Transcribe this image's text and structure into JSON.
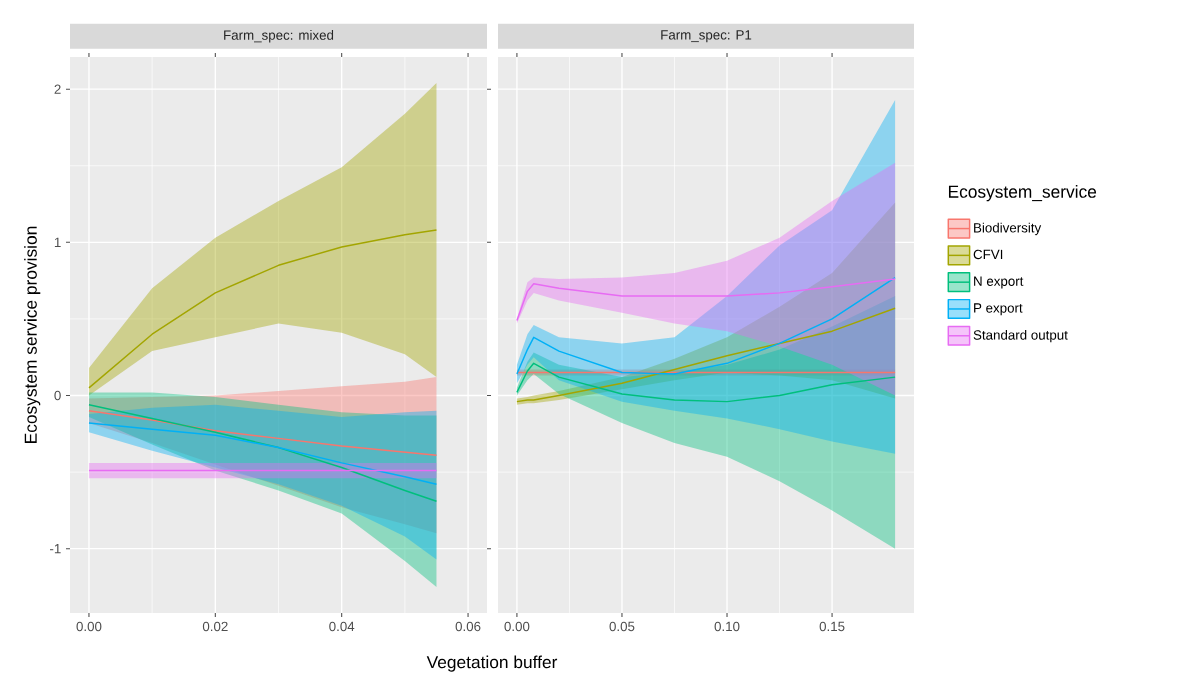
{
  "chart_data": [
    {
      "type": "line",
      "title": "Farm_spec: mixed",
      "xlabel": "Vegetation buffer",
      "ylabel": "Ecosystem service provision",
      "xlim": [
        -0.003,
        0.063
      ],
      "ylim": [
        -1.42,
        2.21
      ],
      "xticks": [
        {
          "value": 0,
          "label": "0.00"
        },
        {
          "value": 0.02,
          "label": "0.02"
        },
        {
          "value": 0.04,
          "label": "0.04"
        },
        {
          "value": 0.06,
          "label": "0.06"
        }
      ],
      "yticks": [
        -1,
        0,
        1,
        2
      ],
      "grid": true,
      "series": [
        {
          "color": "#F8766D",
          "x": [
            0,
            0.01,
            0.02,
            0.03,
            0.04,
            0.05,
            0.055
          ],
          "values": [
            -0.1,
            -0.16,
            -0.23,
            -0.28,
            -0.33,
            -0.37,
            -0.39
          ],
          "upper": [
            -0.02,
            -0.01,
            0.0,
            0.03,
            0.06,
            0.09,
            0.12
          ],
          "lower": [
            -0.18,
            -0.31,
            -0.45,
            -0.59,
            -0.73,
            -0.84,
            -0.9
          ]
        },
        {
          "color": "#A3A500",
          "x": [
            0,
            0.01,
            0.02,
            0.03,
            0.04,
            0.05,
            0.055
          ],
          "values": [
            0.05,
            0.4,
            0.67,
            0.85,
            0.97,
            1.05,
            1.08
          ],
          "upper": [
            0.18,
            0.7,
            1.03,
            1.27,
            1.49,
            1.84,
            2.04
          ],
          "lower": [
            0.0,
            0.29,
            0.38,
            0.47,
            0.41,
            0.27,
            0.12
          ]
        },
        {
          "color": "#00BF7D",
          "x": [
            0,
            0.01,
            0.02,
            0.03,
            0.04,
            0.05,
            0.055
          ],
          "values": [
            -0.06,
            -0.15,
            -0.24,
            -0.34,
            -0.47,
            -0.62,
            -0.69
          ],
          "upper": [
            0.02,
            0.02,
            -0.01,
            -0.06,
            -0.11,
            -0.13,
            -0.13
          ],
          "lower": [
            -0.14,
            -0.32,
            -0.49,
            -0.62,
            -0.77,
            -1.08,
            -1.25
          ]
        },
        {
          "color": "#00B0F6",
          "x": [
            0,
            0.01,
            0.02,
            0.03,
            0.04,
            0.05,
            0.055
          ],
          "values": [
            -0.18,
            -0.22,
            -0.26,
            -0.34,
            -0.44,
            -0.53,
            -0.58
          ],
          "upper": [
            -0.12,
            -0.08,
            -0.06,
            -0.1,
            -0.14,
            -0.11,
            -0.1
          ],
          "lower": [
            -0.24,
            -0.36,
            -0.47,
            -0.58,
            -0.72,
            -0.92,
            -1.07
          ]
        },
        {
          "color": "#E76BF3",
          "x": [
            0,
            0.01,
            0.02,
            0.03,
            0.04,
            0.05,
            0.055
          ],
          "values": [
            -0.49,
            -0.49,
            -0.49,
            -0.49,
            -0.49,
            -0.49,
            -0.49
          ],
          "upper": [
            -0.44,
            -0.44,
            -0.44,
            -0.44,
            -0.44,
            -0.44,
            -0.44
          ],
          "lower": [
            -0.54,
            -0.54,
            -0.54,
            -0.54,
            -0.54,
            -0.54,
            -0.54
          ]
        }
      ]
    },
    {
      "type": "line",
      "title": "Farm_spec: P1",
      "legend_title": "Ecosystem_service",
      "legend": "right",
      "tick_labels": "x",
      "xlim": [
        -0.009,
        0.189
      ],
      "ylim": [
        -1.42,
        2.21
      ],
      "xticks": [
        {
          "value": 0,
          "label": "0.00"
        },
        {
          "value": 0.05,
          "label": "0.05"
        },
        {
          "value": 0.1,
          "label": "0.10"
        },
        {
          "value": 0.15,
          "label": "0.15"
        }
      ],
      "yticks": [
        -1,
        0,
        1,
        2
      ],
      "grid": true,
      "series": [
        {
          "name": "Biodiversity",
          "color": "#F8766D",
          "x": [
            0,
            0.005,
            0.008,
            0.02,
            0.05,
            0.075,
            0.1,
            0.125,
            0.15,
            0.18
          ],
          "values": [
            0.15,
            0.15,
            0.15,
            0.15,
            0.15,
            0.15,
            0.15,
            0.15,
            0.15,
            0.15
          ],
          "upper": [
            0.17,
            0.17,
            0.17,
            0.17,
            0.17,
            0.17,
            0.17,
            0.17,
            0.17,
            0.17
          ],
          "lower": [
            0.13,
            0.13,
            0.13,
            0.13,
            0.13,
            0.13,
            0.13,
            0.13,
            0.13,
            0.13
          ]
        },
        {
          "name": "CFVI",
          "color": "#A3A500",
          "x": [
            0,
            0.005,
            0.008,
            0.02,
            0.05,
            0.075,
            0.1,
            0.125,
            0.15,
            0.18
          ],
          "values": [
            -0.04,
            -0.03,
            -0.03,
            0.0,
            0.08,
            0.17,
            0.26,
            0.34,
            0.42,
            0.57
          ],
          "upper": [
            -0.02,
            -0.01,
            0.0,
            0.03,
            0.12,
            0.24,
            0.38,
            0.58,
            0.8,
            1.26
          ],
          "lower": [
            -0.06,
            -0.05,
            -0.05,
            -0.03,
            0.04,
            0.1,
            0.15,
            0.13,
            0.1,
            -0.02
          ]
        },
        {
          "name": "N export",
          "color": "#00BF7D",
          "x": [
            0,
            0.005,
            0.008,
            0.02,
            0.05,
            0.075,
            0.1,
            0.125,
            0.15,
            0.18
          ],
          "values": [
            0.02,
            0.16,
            0.21,
            0.12,
            0.01,
            -0.03,
            -0.04,
            0.0,
            0.07,
            0.12
          ],
          "upper": [
            0.05,
            0.22,
            0.28,
            0.2,
            0.12,
            0.15,
            0.2,
            0.3,
            0.45,
            0.65
          ],
          "lower": [
            0.0,
            0.1,
            0.14,
            0.01,
            -0.18,
            -0.31,
            -0.4,
            -0.56,
            -0.75,
            -1.0
          ]
        },
        {
          "name": "P export",
          "color": "#00B0F6",
          "x": [
            0,
            0.005,
            0.008,
            0.02,
            0.05,
            0.075,
            0.1,
            0.125,
            0.15,
            0.18
          ],
          "values": [
            0.14,
            0.3,
            0.38,
            0.29,
            0.15,
            0.14,
            0.21,
            0.34,
            0.5,
            0.77
          ],
          "upper": [
            0.2,
            0.4,
            0.46,
            0.38,
            0.34,
            0.38,
            0.65,
            0.98,
            1.21,
            1.93
          ],
          "lower": [
            0.08,
            0.2,
            0.25,
            0.1,
            -0.04,
            -0.1,
            -0.15,
            -0.22,
            -0.3,
            -0.38
          ]
        },
        {
          "name": "Standard output",
          "color": "#E76BF3",
          "x": [
            0,
            0.005,
            0.008,
            0.02,
            0.05,
            0.075,
            0.1,
            0.125,
            0.15,
            0.18
          ],
          "values": [
            0.49,
            0.68,
            0.73,
            0.7,
            0.65,
            0.65,
            0.65,
            0.67,
            0.71,
            0.76
          ],
          "upper": [
            0.5,
            0.74,
            0.77,
            0.76,
            0.77,
            0.8,
            0.88,
            1.03,
            1.27,
            1.52
          ],
          "lower": [
            0.47,
            0.62,
            0.67,
            0.62,
            0.54,
            0.47,
            0.42,
            0.32,
            0.2,
            0.0
          ]
        }
      ]
    }
  ]
}
